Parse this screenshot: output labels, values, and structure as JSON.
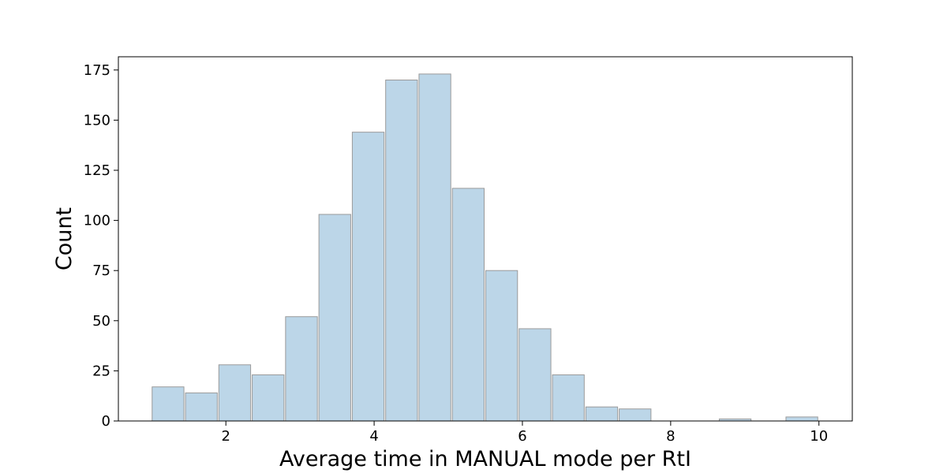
{
  "chart_data": {
    "type": "bar",
    "title": "",
    "xlabel": "Average time in MANUAL mode per RtI",
    "ylabel": "Count",
    "xlim": [
      0.55,
      10.45
    ],
    "ylim": [
      0,
      181.6
    ],
    "xticks": [
      2,
      4,
      6,
      8,
      10
    ],
    "yticks": [
      0,
      25,
      50,
      75,
      100,
      125,
      150,
      175
    ],
    "bin_edges": [
      1.0,
      1.45,
      1.9,
      2.35,
      2.8,
      3.25,
      3.7,
      4.15,
      4.6,
      5.05,
      5.5,
      5.95,
      6.4,
      6.85,
      7.3,
      7.75,
      8.2,
      8.65,
      9.1,
      9.55,
      10.0
    ],
    "values": [
      17,
      14,
      28,
      23,
      52,
      103,
      144,
      170,
      173,
      116,
      75,
      46,
      23,
      7,
      6,
      0,
      0,
      1,
      0,
      2
    ],
    "grid": false,
    "legend": "none",
    "colors": {
      "bar_fill": "#bcd6e8",
      "bar_edge": "#9a9a9a",
      "axis": "#000000"
    }
  }
}
